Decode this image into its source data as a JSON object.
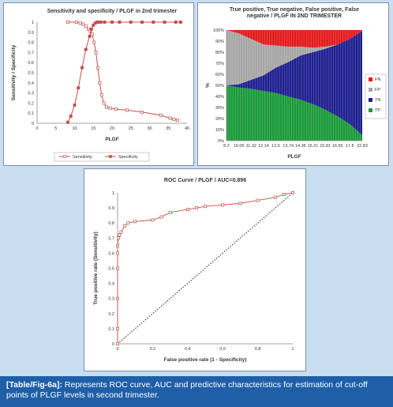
{
  "caption": {
    "label": "[Table/Fig-6a]:",
    "text": "Represents ROC curve, AUC and predictive characteristics for estimation of cut-off points of PLGF levels in second trimester."
  },
  "colors": {
    "background": "#c9def0",
    "caption_bg": "#1f5fa8",
    "sens_spec_line": "#c0504d",
    "FN": "#e31a1c",
    "FP": "#a6a6a6",
    "TN": "#1f1f8f",
    "TP": "#1a9a3a"
  },
  "chart_data": [
    {
      "type": "line",
      "title": "Sensitivity and specificity / PLGF in 2nd trimester",
      "xlabel": "PLGF",
      "ylabel": "Sensitivity / Specificity",
      "xlim": [
        0,
        40
      ],
      "ylim": [
        0,
        1
      ],
      "xticks": [
        "0",
        "5",
        "10",
        "15",
        "20",
        "25",
        "30",
        "35",
        "40"
      ],
      "yticks": [
        "0",
        "0.1",
        "0.2",
        "0.3",
        "0.4",
        "0.5",
        "0.6",
        "0.7",
        "0.8",
        "0.9",
        "1"
      ],
      "legend": "bottom",
      "grid": false,
      "series": [
        {
          "name": "Sensitivity",
          "marker": "square-open",
          "x": [
            8.2,
            10.5,
            11.5,
            12.3,
            13.0,
            13.7,
            14.2,
            14.7,
            15.2,
            15.7,
            16.2,
            16.7,
            17.2,
            17.8,
            18.5,
            19.5,
            21,
            24,
            28,
            33,
            35.5,
            36.5,
            37.5
          ],
          "y": [
            1.0,
            1.0,
            0.99,
            0.98,
            0.96,
            0.93,
            0.91,
            0.88,
            0.8,
            0.7,
            0.55,
            0.4,
            0.28,
            0.2,
            0.16,
            0.15,
            0.14,
            0.13,
            0.11,
            0.08,
            0.05,
            0.04,
            0.03
          ]
        },
        {
          "name": "Specificity",
          "marker": "square-filled",
          "x": [
            8.2,
            9,
            10,
            11,
            12,
            13,
            14,
            14.5,
            15,
            15.5,
            16,
            16.5,
            17,
            18,
            20,
            22,
            25,
            28,
            31,
            34,
            37,
            38.3
          ],
          "y": [
            0.01,
            0.07,
            0.18,
            0.35,
            0.55,
            0.73,
            0.86,
            0.93,
            0.97,
            0.99,
            1.0,
            1.0,
            1.0,
            1.0,
            1.0,
            1.0,
            1.0,
            1.0,
            1.0,
            1.0,
            1.0,
            1.0
          ]
        }
      ]
    },
    {
      "type": "area",
      "stacked": "percent",
      "title": "True positive, True negative, False positive, False negative / PLGF IN 2ND TRIMESTER",
      "xlabel": "PLGF",
      "ylabel": "%",
      "categories": [
        "8.2",
        "10.05",
        "11.32",
        "12.14",
        "12.6",
        "13.74",
        "14.36",
        "15.21",
        "15.81",
        "16.55",
        "17.5",
        "22.83"
      ],
      "yticks": [
        "0%",
        "10%",
        "20%",
        "30%",
        "40%",
        "50%",
        "60%",
        "70%",
        "80%",
        "90%",
        "100%"
      ],
      "legend": "right",
      "series": [
        {
          "name": "TP",
          "values": [
            50,
            48,
            47,
            45,
            43,
            40,
            37,
            33,
            28,
            22,
            15,
            5
          ]
        },
        {
          "name": "TN",
          "values": [
            0,
            3,
            8,
            14,
            23,
            31,
            40,
            47,
            55,
            65,
            77,
            94
          ]
        },
        {
          "name": "FP",
          "values": [
            50,
            46,
            37,
            28,
            20,
            14,
            8,
            4,
            2,
            0,
            0,
            0
          ]
        },
        {
          "name": "FN",
          "values": [
            0,
            3,
            8,
            13,
            14,
            15,
            15,
            16,
            15,
            13,
            8,
            1
          ]
        }
      ]
    },
    {
      "type": "line",
      "title": "ROC Curve / PLGF / AUC=0.896",
      "xlabel": "False positive rate (1 - Specificity)",
      "ylabel": "True positive rate (Sensitivity)",
      "xlim": [
        0,
        1
      ],
      "ylim": [
        0,
        1
      ],
      "xticks": [
        "0",
        "0.2",
        "0.4",
        "0.6",
        "0.8",
        "1"
      ],
      "yticks": [
        "0",
        "0.1",
        "0.2",
        "0.3",
        "0.4",
        "0.5",
        "0.6",
        "0.7",
        "0.8",
        "0.9",
        "1"
      ],
      "grid": false,
      "series": [
        {
          "name": "",
          "marker": "square-open",
          "x": [
            0,
            0,
            0,
            0,
            0,
            0,
            0.005,
            0.01,
            0.02,
            0.04,
            0.06,
            0.1,
            0.2,
            0.25,
            0.3,
            0.4,
            0.45,
            0.5,
            0.6,
            0.7,
            0.8,
            0.9,
            0.95,
            1.0
          ],
          "y": [
            0,
            0.1,
            0.3,
            0.5,
            0.6,
            0.65,
            0.7,
            0.72,
            0.74,
            0.78,
            0.8,
            0.81,
            0.82,
            0.84,
            0.87,
            0.89,
            0.9,
            0.91,
            0.92,
            0.93,
            0.95,
            0.97,
            0.99,
            1.0
          ]
        },
        {
          "name": "",
          "style": "dotted-diagonal",
          "x": [
            0,
            1
          ],
          "y": [
            0,
            1
          ]
        }
      ]
    }
  ]
}
